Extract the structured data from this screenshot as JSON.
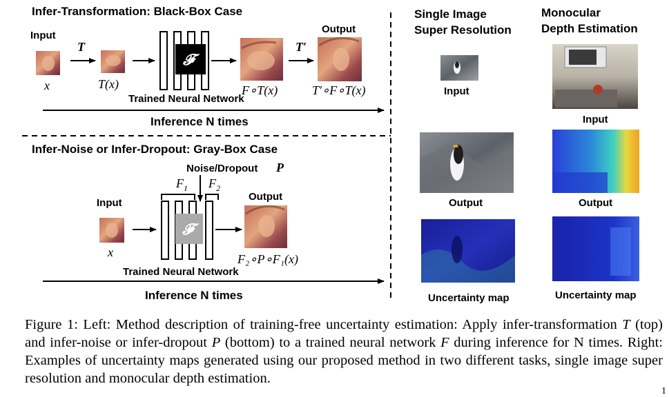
{
  "left_top": {
    "title": "Infer-Transformation: Black-Box Case",
    "input_label": "Input",
    "output_label": "Output",
    "x_symbol": "x",
    "t_symbol": "T",
    "t_of_x": "T(x)",
    "f_symbol": "𝓕",
    "f_t_x": "F∘T(x)",
    "t_prime": "T′",
    "t_prime_f_t_x": "T′∘F∘T(x)",
    "network_label": "Trained Neural Network",
    "inference_label": "Inference N times"
  },
  "left_bottom": {
    "title": "Infer-Noise or Infer-Dropout: Gray-Box Case",
    "input_label": "Input",
    "output_label": "Output",
    "x_symbol": "x",
    "noise_label": "Noise/Dropout",
    "p_symbol": "P",
    "f1": "F",
    "f1_sub": "1",
    "f2": "F",
    "f2_sub": "2",
    "f_symbol": "𝓕",
    "result": "F₂∘P∘F₁(x)",
    "network_label": "Trained Neural Network",
    "inference_label": "Inference N times"
  },
  "right": {
    "sr_title_line1": "Single Image",
    "sr_title_line2": "Super Resolution",
    "depth_title_line1": "Monocular",
    "depth_title_line2": "Depth Estimation",
    "sr_input": "Input",
    "sr_output": "Output",
    "sr_uncertainty": "Uncertainty map",
    "depth_input": "Input",
    "depth_output": "Output",
    "depth_uncertainty": "Uncertainty map"
  },
  "caption": {
    "seg1": "Figure 1:  Left:  Method description of training-free uncertainty estimation:  Apply infer-transformation ",
    "sym_T": "T",
    "seg2": " (top) and infer-noise or infer-dropout ",
    "sym_P": "P",
    "seg3": " (bottom) to a trained neural network ",
    "sym_F": "F",
    "seg4": " during inference for N times. Right: Examples of uncertainty maps generated using our proposed method in two different tasks, single image super resolution and monocular depth estimation."
  },
  "page_mark": "1"
}
